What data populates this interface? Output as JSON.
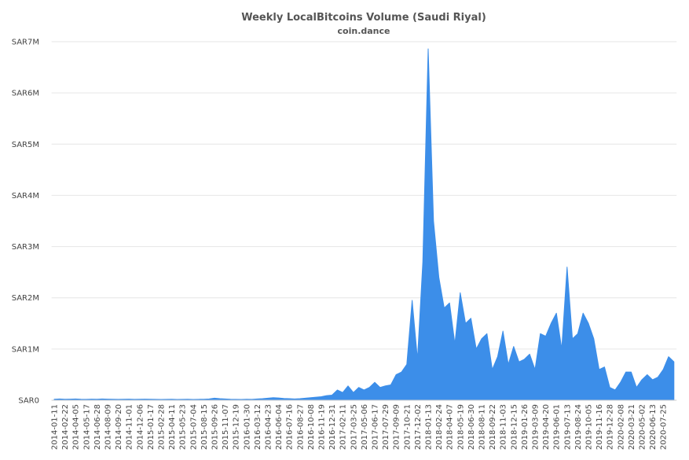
{
  "chart_data": {
    "type": "area",
    "title": "Weekly LocalBitcoins Volume (Saudi Riyal)",
    "subtitle": "coin.dance",
    "color": "#3c8ee9",
    "grid": true,
    "ylim": [
      0,
      7000000
    ],
    "yticks": [
      {
        "value": 0,
        "label": "SAR0"
      },
      {
        "value": 1000000,
        "label": "SAR1M"
      },
      {
        "value": 2000000,
        "label": "SAR2M"
      },
      {
        "value": 3000000,
        "label": "SAR3M"
      },
      {
        "value": 4000000,
        "label": "SAR4M"
      },
      {
        "value": 5000000,
        "label": "SAR5M"
      },
      {
        "value": 6000000,
        "label": "SAR6M"
      },
      {
        "value": 7000000,
        "label": "SAR7M"
      }
    ],
    "categories": [
      "2014-01-11",
      null,
      "2014-02-22",
      null,
      "2014-04-05",
      null,
      "2014-05-17",
      null,
      "2014-06-28",
      null,
      "2014-08-09",
      null,
      "2014-09-20",
      null,
      "2014-11-01",
      null,
      "2014-12-06",
      null,
      "2015-01-17",
      null,
      "2015-02-28",
      null,
      "2015-04-11",
      null,
      "2015-05-23",
      null,
      "2015-07-04",
      null,
      "2015-08-15",
      null,
      "2015-09-26",
      null,
      "2015-11-07",
      null,
      "2015-12-19",
      null,
      "2016-01-30",
      null,
      "2016-03-12",
      null,
      "2016-04-23",
      null,
      "2016-06-04",
      null,
      "2016-07-16",
      null,
      "2016-08-27",
      null,
      "2016-10-08",
      null,
      "2016-11-19",
      null,
      "2016-12-31",
      null,
      "2017-02-11",
      null,
      "2017-03-25",
      null,
      "2017-05-06",
      null,
      "2017-06-17",
      null,
      "2017-07-29",
      null,
      "2017-09-09",
      null,
      "2017-10-21",
      null,
      "2017-12-02",
      null,
      "2018-01-13",
      null,
      "2018-02-24",
      null,
      "2018-04-07",
      null,
      "2018-05-19",
      null,
      "2018-06-30",
      null,
      "2018-08-11",
      null,
      "2018-09-22",
      null,
      "2018-11-03",
      null,
      "2018-12-15",
      null,
      "2019-01-26",
      null,
      "2019-03-09",
      null,
      "2019-04-20",
      null,
      "2019-06-01",
      null,
      "2019-07-13",
      null,
      "2019-08-24",
      null,
      "2019-10-05",
      null,
      "2019-11-16",
      null,
      "2019-12-28",
      null,
      "2020-02-08",
      null,
      "2020-03-21",
      null,
      "2020-05-02",
      null,
      "2020-06-13",
      null,
      "2020-07-25",
      null,
      null
    ],
    "values": [
      20000,
      25000,
      20000,
      22000,
      25000,
      20000,
      18000,
      22000,
      20000,
      25000,
      22000,
      20000,
      18000,
      20000,
      22000,
      18000,
      20000,
      22000,
      20000,
      18000,
      15000,
      18000,
      20000,
      15000,
      18000,
      20000,
      15000,
      18000,
      20000,
      25000,
      40000,
      30000,
      25000,
      20000,
      18000,
      15000,
      20000,
      18000,
      25000,
      30000,
      40000,
      50000,
      45000,
      35000,
      30000,
      25000,
      30000,
      40000,
      50000,
      60000,
      70000,
      90000,
      100000,
      200000,
      150000,
      280000,
      150000,
      250000,
      200000,
      250000,
      350000,
      250000,
      280000,
      300000,
      500000,
      550000,
      700000,
      1950000,
      800000,
      2700000,
      6860000,
      3500000,
      2400000,
      1800000,
      1900000,
      1100000,
      2100000,
      1500000,
      1600000,
      1000000,
      1200000,
      1300000,
      600000,
      850000,
      1350000,
      700000,
      1050000,
      750000,
      800000,
      900000,
      600000,
      1300000,
      1250000,
      1500000,
      1700000,
      1000000,
      2600000,
      1200000,
      1300000,
      1700000,
      1500000,
      1200000,
      600000,
      650000,
      250000,
      200000,
      350000,
      550000,
      550000,
      250000,
      400000,
      500000,
      400000,
      450000,
      600000,
      850000,
      750000
    ]
  }
}
